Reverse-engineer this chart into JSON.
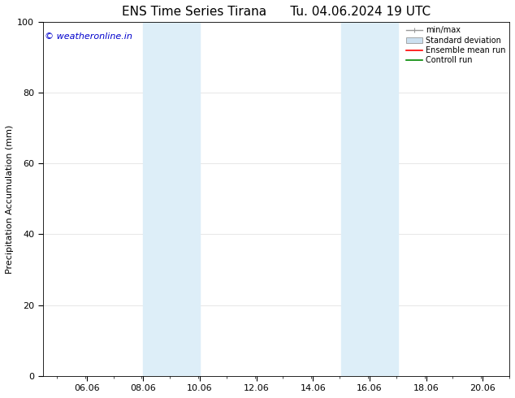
{
  "title_left": "ENS Time Series Tirana",
  "title_right": "Tu. 04.06.2024 19 UTC",
  "ylabel": "Precipitation Accumulation (mm)",
  "ylim": [
    0,
    100
  ],
  "yticks": [
    0,
    20,
    40,
    60,
    80,
    100
  ],
  "xlim": [
    4.5,
    21.0
  ],
  "xtick_positions": [
    6.06,
    8.06,
    10.06,
    12.06,
    14.06,
    16.06,
    18.06,
    20.06
  ],
  "xtick_labels": [
    "06.06",
    "08.06",
    "10.06",
    "12.06",
    "14.06",
    "16.06",
    "18.06",
    "20.06"
  ],
  "shaded_bands": [
    {
      "x_start": 8.06,
      "x_end": 10.06
    },
    {
      "x_start": 15.06,
      "x_end": 17.06
    }
  ],
  "shaded_color": "#ddeef8",
  "background_color": "#ffffff",
  "plot_bg_color": "#ffffff",
  "grid_color": "#dddddd",
  "watermark_text": "© weatheronline.in",
  "watermark_color": "#0000cc",
  "legend_items": [
    {
      "label": "min/max",
      "color": "#999999",
      "lw": 1.0,
      "ls": "-"
    },
    {
      "label": "Standard deviation",
      "color": "#cce0f0",
      "lw": 6,
      "ls": "-"
    },
    {
      "label": "Ensemble mean run",
      "color": "#ff0000",
      "lw": 1.2,
      "ls": "-"
    },
    {
      "label": "Controll run",
      "color": "#008800",
      "lw": 1.2,
      "ls": "-"
    }
  ],
  "title_fontsize": 11,
  "axis_label_fontsize": 8,
  "tick_fontsize": 8,
  "watermark_fontsize": 8,
  "legend_fontsize": 7
}
